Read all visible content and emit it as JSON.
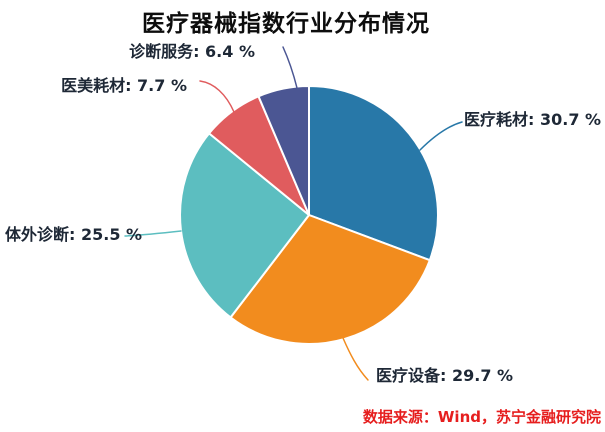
{
  "chart_data": {
    "type": "pie",
    "title": "医疗器械指数行业分布情况",
    "direction": "clockwise",
    "start_angle_deg": 0,
    "legend": "none",
    "label_style": "callout-lines",
    "total": 100,
    "slices": [
      {
        "name": "医疗耗材",
        "value": 30.7,
        "label_display": "医疗耗材: 30.7 %",
        "color": "#2878A8"
      },
      {
        "name": "医疗设备",
        "value": 29.7,
        "label_display": "医疗设备: 29.7 %",
        "color": "#F28C1E"
      },
      {
        "name": "体外诊断",
        "value": 25.5,
        "label_display": "体外诊断: 25.5 %",
        "color": "#5CBEC0"
      },
      {
        "name": "医美耗材",
        "value": 7.7,
        "label_display": "医美耗材: 7.7 %",
        "color": "#E05C5E"
      },
      {
        "name": "诊断服务",
        "value": 6.4,
        "label_display": "诊断服务: 6.4 %",
        "color": "#4B5693"
      }
    ]
  },
  "footer": {
    "source": "数据来源：Wind，苏宁金融研究院"
  }
}
